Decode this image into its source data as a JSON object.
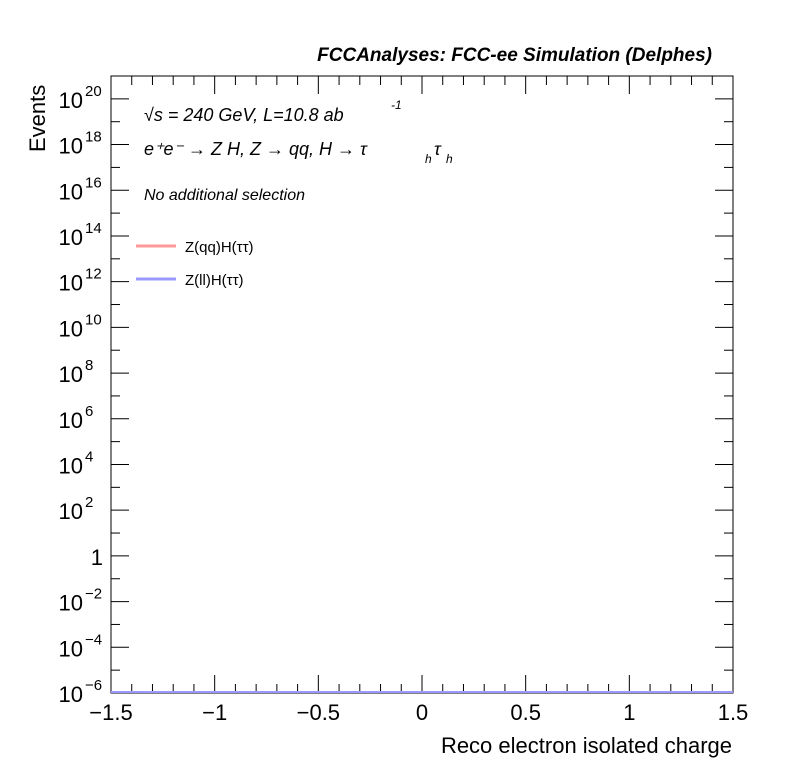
{
  "header": {
    "title": "FCCAnalyses: FCC-ee Simulation (Delphes)"
  },
  "annotations": {
    "energy_lumi": "√s = 240 GeV, L=10.8 ab",
    "lumi_exp": "-1",
    "process": "e⁺e⁻ → Z H, Z → qq, H → τ",
    "process_sub": "h",
    "process_tail": "τ",
    "process_sub2": "h",
    "selection": "No additional selection"
  },
  "chart_data": {
    "type": "line",
    "title": "FCCAnalyses: FCC-ee Simulation (Delphes)",
    "xlabel": "Reco electron isolated charge",
    "ylabel": "Events",
    "xlim": [
      -1.5,
      1.5
    ],
    "ylim": [
      1e-06,
      1e+21
    ],
    "log_y": true,
    "grid": false,
    "legend_position": "top-left",
    "x_ticks": [
      {
        "value": -1.5,
        "label": "−1.5"
      },
      {
        "value": -1,
        "label": "−1"
      },
      {
        "value": -0.5,
        "label": "−0.5"
      },
      {
        "value": 0,
        "label": "0"
      },
      {
        "value": 0.5,
        "label": "0.5"
      },
      {
        "value": 1,
        "label": "1"
      },
      {
        "value": 1.5,
        "label": "1.5"
      }
    ],
    "y_ticks": [
      {
        "exp": -6,
        "base": "10",
        "sup": "−6"
      },
      {
        "exp": -4,
        "base": "10",
        "sup": "−4"
      },
      {
        "exp": -2,
        "base": "10",
        "sup": "−2"
      },
      {
        "exp": 0,
        "base": "1",
        "sup": ""
      },
      {
        "exp": 2,
        "base": "10",
        "sup": "2"
      },
      {
        "exp": 4,
        "base": "10",
        "sup": "4"
      },
      {
        "exp": 6,
        "base": "10",
        "sup": "6"
      },
      {
        "exp": 8,
        "base": "10",
        "sup": "8"
      },
      {
        "exp": 10,
        "base": "10",
        "sup": "10"
      },
      {
        "exp": 12,
        "base": "10",
        "sup": "12"
      },
      {
        "exp": 14,
        "base": "10",
        "sup": "14"
      },
      {
        "exp": 16,
        "base": "10",
        "sup": "16"
      },
      {
        "exp": 18,
        "base": "10",
        "sup": "18"
      },
      {
        "exp": 20,
        "base": "10",
        "sup": "20"
      }
    ],
    "series": [
      {
        "name": "Z(qq)H(ττ)",
        "color": "#ff9999",
        "x": [
          -1.5,
          1.5
        ],
        "y": [
          1e-06,
          1e-06
        ]
      },
      {
        "name": "Z(ll)H(ττ)",
        "color": "#9999ff",
        "x": [
          -1.5,
          1.5
        ],
        "y": [
          1e-06,
          1e-06
        ]
      }
    ]
  }
}
